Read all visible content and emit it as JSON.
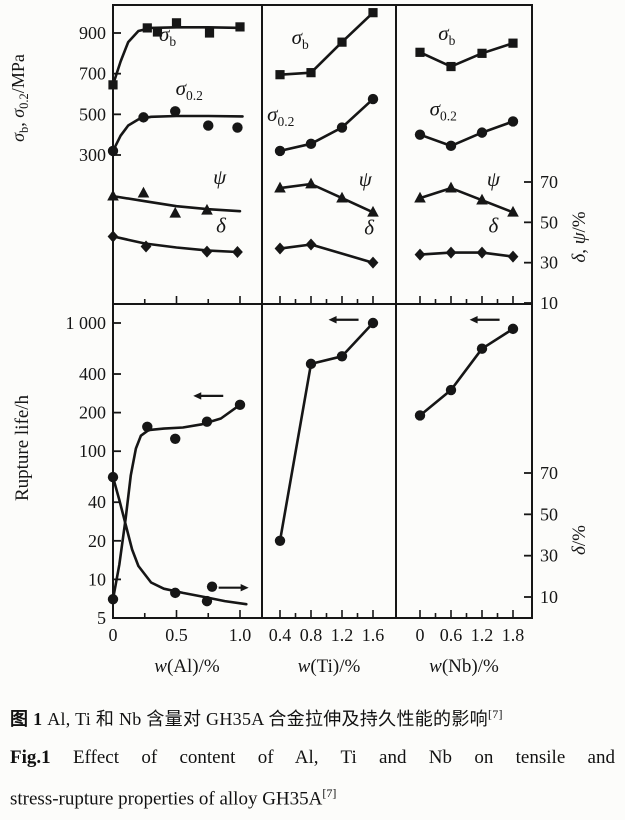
{
  "figure": {
    "caption_cn": {
      "prefix": "图 1",
      "text": " Al, Ti 和 Nb 含量对 GH35A 合金拉伸及持久性能的影响",
      "sup": "[7]"
    },
    "caption_en": {
      "prefix": "Fig.1",
      "line1_rest": "  Effect of content of Al, Ti and Nb on tensile and",
      "line2": "stress-rupture properties of alloy GH35A",
      "sup": "[7]"
    }
  },
  "chart_data": {
    "type": "line",
    "title": "Effect of content of Al, Ti and Nb on tensile and stress-rupture properties of alloy GH35A",
    "grid": false,
    "legend": "in-plot series labels",
    "axes": {
      "top_left": {
        "label": "σb, σ0.2/MPa",
        "scale": "linear",
        "ticks": [
          900,
          700,
          500,
          300
        ],
        "label_parts": [
          {
            "t": "σ",
            "it": 1
          },
          {
            "t": "b",
            "sub": 1
          },
          {
            "t": ", "
          },
          {
            "t": "σ",
            "it": 1
          },
          {
            "t": "0.2",
            "sub": 1
          },
          {
            "t": "/MPa"
          }
        ]
      },
      "top_right": {
        "label": "δ, ψ/%",
        "scale": "linear",
        "ticks": [
          70,
          50,
          30,
          10
        ],
        "label_parts": [
          {
            "t": "δ",
            "it": 1
          },
          {
            "t": ", "
          },
          {
            "t": "ψ",
            "it": 1
          },
          {
            "t": "/%"
          }
        ]
      },
      "bottom_left": {
        "label": "Rupture life/h",
        "scale": "log",
        "ticks": [
          1000,
          400,
          200,
          100,
          40,
          20,
          10,
          5
        ],
        "tick_labels": [
          "1 000",
          "400",
          "200",
          "100",
          "40",
          "20",
          "10",
          "5"
        ],
        "label_parts": [
          {
            "t": "Rupture life/h"
          }
        ]
      },
      "bottom_right": {
        "label": "δ/%",
        "scale": "linear",
        "ticks": [
          70,
          50,
          30,
          10
        ],
        "label_parts": [
          {
            "t": "δ",
            "it": 1
          },
          {
            "t": "/%"
          }
        ]
      }
    },
    "columns": [
      {
        "element": "Al",
        "xlabel": "w(Al)/%",
        "xlabel_parts": [
          {
            "t": "w",
            "it": 1
          },
          {
            "t": "(Al)/%"
          }
        ],
        "x_ticks": [
          0,
          0.5,
          1.0
        ],
        "x_tick_labels": [
          "0",
          "0.5",
          "1.0"
        ],
        "x_minor": [
          0.25,
          0.75
        ],
        "x_range": [
          0,
          1.17
        ]
      },
      {
        "element": "Ti",
        "xlabel": "w(Ti)/%",
        "xlabel_parts": [
          {
            "t": "w",
            "it": 1
          },
          {
            "t": "(Ti)/%"
          }
        ],
        "x_ticks": [
          0.4,
          0.8,
          1.2,
          1.6
        ],
        "x_tick_labels": [
          "0.4",
          "0.8",
          "1.2",
          "1.6"
        ],
        "x_minor": [
          0.6,
          1.0,
          1.4
        ],
        "x_range": [
          0.17,
          1.9
        ]
      },
      {
        "element": "Nb",
        "xlabel": "w(Nb)/%",
        "xlabel_parts": [
          {
            "t": "w",
            "it": 1
          },
          {
            "t": "(Nb)/%"
          }
        ],
        "x_ticks": [
          0,
          0.6,
          1.2,
          1.8
        ],
        "x_tick_labels": [
          "0",
          "0.6",
          "1.2",
          "1.8"
        ],
        "x_minor": [
          0.3,
          0.9,
          1.5
        ],
        "x_range": [
          -0.46,
          2.17
        ]
      }
    ],
    "top_row": [
      {
        "col": 0,
        "series": [
          {
            "name": "sigma_b",
            "marker": "square",
            "axis": "mpa",
            "points": [
              [
                0,
                645
              ],
              [
                0.27,
                925
              ],
              [
                0.35,
                905
              ],
              [
                0.5,
                950
              ],
              [
                0.76,
                900
              ],
              [
                1.0,
                930
              ]
            ],
            "line": [
              [
                0,
                645
              ],
              [
                0.06,
                760
              ],
              [
                0.12,
                855
              ],
              [
                0.2,
                910
              ],
              [
                0.3,
                925
              ],
              [
                0.5,
                928
              ],
              [
                0.75,
                928
              ],
              [
                1.02,
                925
              ]
            ],
            "label": {
              "text": "σ",
              "sub": "b",
              "x": 0.43,
              "y": 860
            }
          },
          {
            "name": "sigma_0.2",
            "marker": "circle",
            "axis": "mpa",
            "points": [
              [
                0,
                320
              ],
              [
                0.24,
                485
              ],
              [
                0.49,
                515
              ],
              [
                0.75,
                445
              ],
              [
                0.98,
                435
              ]
            ],
            "line": [
              [
                0,
                320
              ],
              [
                0.06,
                395
              ],
              [
                0.12,
                445
              ],
              [
                0.2,
                475
              ],
              [
                0.3,
                488
              ],
              [
                0.5,
                492
              ],
              [
                0.75,
                492
              ],
              [
                1.02,
                490
              ]
            ],
            "label": {
              "text": "σ",
              "sub": "0.2",
              "x": 0.6,
              "y": 595
            }
          },
          {
            "name": "psi",
            "marker": "triangle",
            "axis": "pct",
            "points": [
              [
                0,
                63
              ],
              [
                0.24,
                64.5
              ],
              [
                0.49,
                54.5
              ],
              [
                0.74,
                56
              ]
            ],
            "line": [
              [
                0,
                63
              ],
              [
                0.25,
                60.5
              ],
              [
                0.5,
                58
              ],
              [
                0.75,
                56.5
              ],
              [
                1.0,
                55.5
              ]
            ],
            "label": {
              "text": "ψ",
              "x": 0.84,
              "y": 69
            }
          },
          {
            "name": "delta",
            "marker": "diamond",
            "axis": "pct",
            "points": [
              [
                0,
                43
              ],
              [
                0.26,
                38
              ],
              [
                0.74,
                35.5
              ],
              [
                0.98,
                35.3
              ]
            ],
            "line": [
              [
                0,
                43
              ],
              [
                0.25,
                39.5
              ],
              [
                0.5,
                37.5
              ],
              [
                0.75,
                36
              ],
              [
                0.98,
                35.3
              ]
            ],
            "label": {
              "text": "δ",
              "x": 0.85,
              "y": 45
            }
          }
        ]
      },
      {
        "col": 1,
        "series": [
          {
            "name": "sigma_b",
            "marker": "square",
            "axis": "mpa",
            "points": [
              [
                0.4,
                695
              ],
              [
                0.8,
                705
              ],
              [
                1.2,
                855
              ],
              [
                1.6,
                1000
              ]
            ],
            "label": {
              "text": "σ",
              "sub": "b",
              "x": 0.66,
              "y": 845
            }
          },
          {
            "name": "sigma_0.2",
            "marker": "circle",
            "axis": "mpa",
            "points": [
              [
                0.4,
                320
              ],
              [
                0.8,
                355
              ],
              [
                1.2,
                435
              ],
              [
                1.6,
                575
              ]
            ],
            "label": {
              "text": "σ",
              "sub": "0.2",
              "x": 0.41,
              "y": 468
            }
          },
          {
            "name": "psi",
            "marker": "triangle",
            "axis": "pct",
            "points": [
              [
                0.4,
                67
              ],
              [
                0.8,
                69
              ],
              [
                1.2,
                62
              ],
              [
                1.6,
                55
              ]
            ],
            "label": {
              "text": "ψ",
              "x": 1.5,
              "y": 68
            }
          },
          {
            "name": "delta",
            "marker": "diamond",
            "axis": "pct",
            "points": [
              [
                0.4,
                37
              ],
              [
                0.8,
                39
              ],
              [
                1.6,
                30
              ]
            ],
            "label": {
              "text": "δ",
              "x": 1.55,
              "y": 44
            }
          }
        ]
      },
      {
        "col": 2,
        "series": [
          {
            "name": "sigma_b",
            "marker": "square",
            "axis": "mpa",
            "points": [
              [
                0,
                805
              ],
              [
                0.6,
                735
              ],
              [
                1.2,
                800
              ],
              [
                1.8,
                850
              ]
            ],
            "label": {
              "text": "σ",
              "sub": "b",
              "x": 0.52,
              "y": 865
            }
          },
          {
            "name": "sigma_0.2",
            "marker": "circle",
            "axis": "mpa",
            "points": [
              [
                0,
                400
              ],
              [
                0.6,
                345
              ],
              [
                1.2,
                410
              ],
              [
                1.8,
                465
              ]
            ],
            "label": {
              "text": "σ",
              "sub": "0.2",
              "x": 0.45,
              "y": 495
            }
          },
          {
            "name": "psi",
            "marker": "triangle",
            "axis": "pct",
            "points": [
              [
                0,
                62
              ],
              [
                0.6,
                67
              ],
              [
                1.2,
                61
              ],
              [
                1.8,
                55
              ]
            ],
            "label": {
              "text": "ψ",
              "x": 1.42,
              "y": 68
            }
          },
          {
            "name": "delta",
            "marker": "diamond",
            "axis": "pct",
            "points": [
              [
                0,
                34
              ],
              [
                0.6,
                35
              ],
              [
                1.2,
                35
              ],
              [
                1.8,
                33
              ]
            ],
            "label": {
              "text": "δ",
              "x": 1.42,
              "y": 45
            }
          }
        ]
      }
    ],
    "bottom_row": [
      {
        "col": 0,
        "series": [
          {
            "name": "rupture_life",
            "marker": "circle",
            "axis": "life",
            "points": [
              [
                0,
                7
              ],
              [
                0.27,
                155
              ],
              [
                0.49,
                125
              ],
              [
                0.74,
                170
              ],
              [
                1.0,
                230
              ]
            ],
            "line": [
              [
                0,
                7
              ],
              [
                0.05,
                13
              ],
              [
                0.1,
                30
              ],
              [
                0.14,
                65
              ],
              [
                0.18,
                105
              ],
              [
                0.22,
                132
              ],
              [
                0.28,
                146
              ],
              [
                0.4,
                150
              ],
              [
                0.55,
                153
              ],
              [
                0.7,
                162
              ],
              [
                0.85,
                180
              ],
              [
                1.0,
                230
              ]
            ],
            "arrow": {
              "dir": "left",
              "x": 0.75,
              "y": 270
            }
          },
          {
            "name": "delta_rupture",
            "marker": "circle",
            "axis": "dpct",
            "points": [
              [
                0,
                68
              ],
              [
                0.49,
                12
              ],
              [
                0.74,
                8
              ],
              [
                0.78,
                15
              ]
            ],
            "line": [
              [
                0,
                68
              ],
              [
                0.05,
                57
              ],
              [
                0.1,
                45
              ],
              [
                0.15,
                33
              ],
              [
                0.2,
                25
              ],
              [
                0.3,
                17
              ],
              [
                0.4,
                14
              ],
              [
                0.55,
                12
              ],
              [
                0.72,
                10
              ],
              [
                0.88,
                8
              ],
              [
                1.05,
                6.5
              ]
            ],
            "arrow": {
              "dir": "right",
              "x": 0.95,
              "y": 14.5
            }
          }
        ]
      },
      {
        "col": 1,
        "series": [
          {
            "name": "rupture_life",
            "marker": "circle",
            "axis": "life",
            "points": [
              [
                0.4,
                20
              ],
              [
                0.8,
                480
              ],
              [
                1.2,
                550
              ],
              [
                1.6,
                1000
              ]
            ],
            "arrow": {
              "dir": "left",
              "x": 1.22,
              "y": 1060
            }
          }
        ]
      },
      {
        "col": 2,
        "series": [
          {
            "name": "rupture_life",
            "marker": "circle",
            "axis": "life",
            "points": [
              [
                0,
                190
              ],
              [
                0.6,
                300
              ],
              [
                1.2,
                630
              ],
              [
                1.8,
                900
              ]
            ],
            "arrow": {
              "dir": "left",
              "x": 1.25,
              "y": 1060
            }
          }
        ]
      }
    ]
  }
}
